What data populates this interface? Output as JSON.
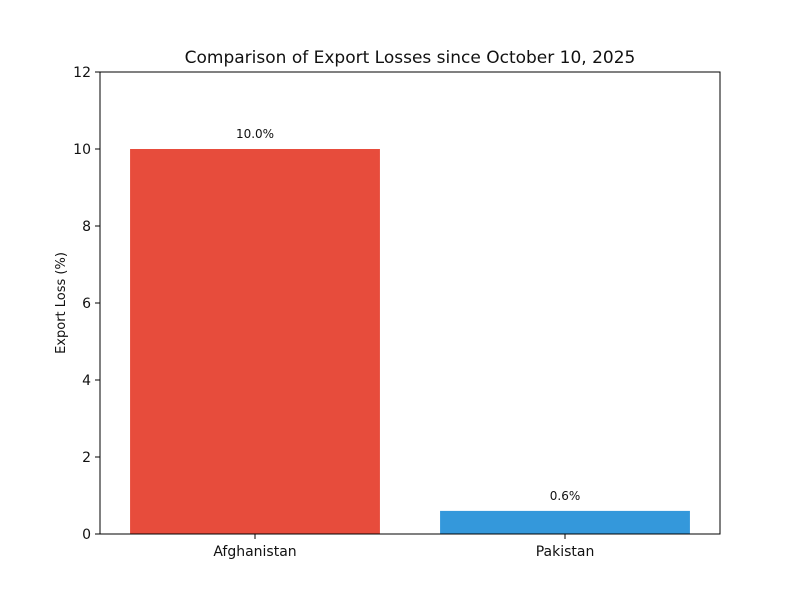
{
  "chart_data": {
    "type": "bar",
    "title": "Comparison of Export Losses since October 10, 2025",
    "xlabel": "",
    "ylabel": "Export Loss (%)",
    "categories": [
      "Afghanistan",
      "Pakistan"
    ],
    "values": [
      10.0,
      0.6
    ],
    "value_labels": [
      "10.0%",
      "0.6%"
    ],
    "bar_colors": [
      "#e74c3c",
      "#3498db"
    ],
    "ylim": [
      0,
      12
    ],
    "yticks": [
      0,
      2,
      4,
      6,
      8,
      10,
      12
    ],
    "grid": false,
    "legend": "none"
  }
}
